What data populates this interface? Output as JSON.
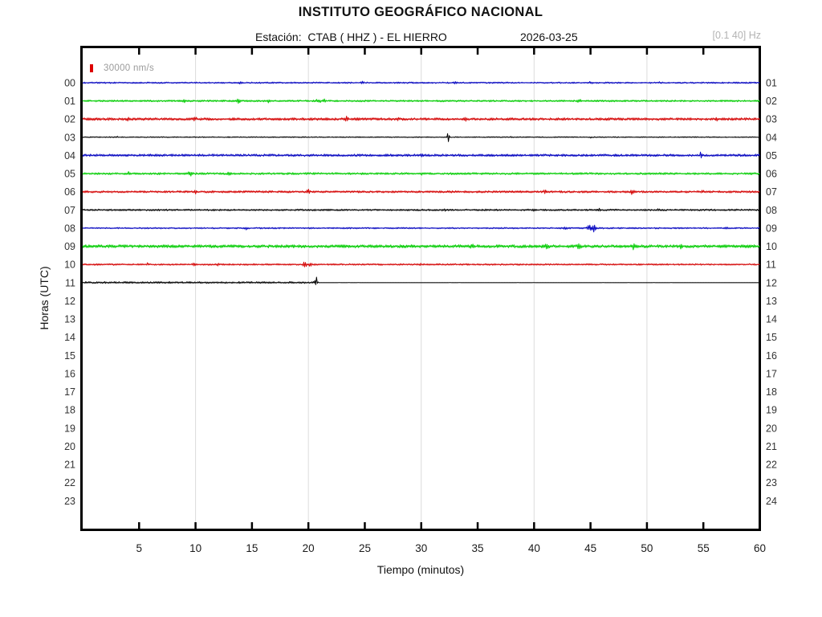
{
  "header": {
    "title": "INSTITUTO GEOGRÁFICO NACIONAL",
    "station_label": "Estación:",
    "station": "CTAB ( HHZ ) - EL HIERRO",
    "date": "2026-03-25",
    "filter_band": "[0.1 40] Hz"
  },
  "legend": {
    "scale_label": "30000 nm/s",
    "marker_color": "#dd0000"
  },
  "chart_data": {
    "type": "line",
    "subtype": "helicorder-seismogram",
    "title": "INSTITUTO GEOGRÁFICO NACIONAL",
    "subtitle": "Estación: CTAB ( HHZ ) - EL HIERRO 2026-03-25",
    "xlabel": "Tiempo (minutos)",
    "ylabel": "Horas (UTC)",
    "x_axis": {
      "range": [
        0,
        60
      ],
      "tick_interval": 5,
      "tick_labels": [
        5,
        10,
        15,
        20,
        25,
        30,
        35,
        40,
        45,
        50,
        55,
        60
      ],
      "gridlines": [
        10,
        20,
        30,
        40,
        50
      ],
      "grid_color": "#dcdcdc"
    },
    "y_axis_left": {
      "label": "Horas (UTC)",
      "tick_labels": [
        "00",
        "01",
        "02",
        "03",
        "04",
        "05",
        "06",
        "07",
        "08",
        "09",
        "10",
        "11",
        "12",
        "13",
        "14",
        "15",
        "16",
        "17",
        "18",
        "19",
        "20",
        "21",
        "22",
        "23"
      ]
    },
    "y_axis_right": {
      "tick_labels": [
        "01",
        "02",
        "03",
        "04",
        "05",
        "06",
        "07",
        "08",
        "09",
        "10",
        "11",
        "12",
        "13",
        "14",
        "15",
        "16",
        "17",
        "18",
        "19",
        "20",
        "21",
        "22",
        "23",
        "24"
      ]
    },
    "frame_color": "#000000",
    "rows": [
      {
        "hour": "00",
        "color": "#0000bf",
        "amp": 0.9,
        "end": 60,
        "events": [
          {
            "m": 13.9,
            "a": 1.5,
            "w": 0.2
          },
          {
            "m": 24.8,
            "a": 1.2,
            "w": 0.2
          },
          {
            "m": 33,
            "a": 1.2,
            "w": 0.2
          },
          {
            "m": 45,
            "a": 1.5,
            "w": 0.25
          },
          {
            "m": 51,
            "a": 1.0,
            "w": 0.2
          }
        ]
      },
      {
        "hour": "01",
        "color": "#00cc00",
        "amp": 1.1,
        "end": 60,
        "events": [
          {
            "m": 9,
            "a": 1.5,
            "w": 0.25
          },
          {
            "m": 13.8,
            "a": 2.8,
            "w": 0.2
          },
          {
            "m": 16.5,
            "a": 1.8,
            "w": 0.2
          },
          {
            "m": 20.9,
            "a": 2.8,
            "w": 0.25
          },
          {
            "m": 21.4,
            "a": 2.2,
            "w": 0.2
          },
          {
            "m": 44,
            "a": 1.5,
            "w": 0.3
          }
        ]
      },
      {
        "hour": "02",
        "color": "#d40000",
        "amp": 1.6,
        "end": 60,
        "events": [
          {
            "m": 4,
            "a": 1.5,
            "w": 0.2
          },
          {
            "m": 10,
            "a": 1.5,
            "w": 0.25
          },
          {
            "m": 23.4,
            "a": 2.8,
            "w": 0.18
          },
          {
            "m": 27.9,
            "a": 1.8,
            "w": 0.2
          },
          {
            "m": 34,
            "a": 1.5,
            "w": 0.2
          },
          {
            "m": 56.2,
            "a": 1.6,
            "w": 0.18
          }
        ]
      },
      {
        "hour": "03",
        "color": "#000000",
        "amp": 0.8,
        "end": 60,
        "asym": 0.45,
        "events": [
          {
            "m": 3,
            "a": 1.0,
            "w": 0.15
          },
          {
            "m": 13,
            "a": 1.2,
            "w": 0.15
          },
          {
            "m": 24.6,
            "a": 1.0,
            "w": 0.15
          },
          {
            "m": 32.4,
            "a": 11,
            "w": 0.12
          },
          {
            "m": 38,
            "a": 1.0,
            "w": 0.15
          },
          {
            "m": 45,
            "a": 1.2,
            "w": 0.2
          }
        ]
      },
      {
        "hour": "04",
        "color": "#0000bf",
        "amp": 1.7,
        "end": 60,
        "asym": 0.25,
        "events": [
          {
            "m": 20,
            "a": 1.3,
            "w": 0.2
          },
          {
            "m": 30,
            "a": 1.5,
            "w": 0.2
          },
          {
            "m": 54.8,
            "a": 5,
            "w": 0.15
          }
        ]
      },
      {
        "hour": "05",
        "color": "#00cc00",
        "amp": 1.3,
        "end": 60,
        "events": [
          {
            "m": 4,
            "a": 2.0,
            "w": 0.25
          },
          {
            "m": 9.5,
            "a": 3.5,
            "w": 0.18
          },
          {
            "m": 13,
            "a": 1.8,
            "w": 0.2
          },
          {
            "m": 30,
            "a": 1.3,
            "w": 0.2
          }
        ]
      },
      {
        "hour": "06",
        "color": "#d40000",
        "amp": 1.3,
        "end": 60,
        "events": [
          {
            "m": 10,
            "a": 1.5,
            "w": 0.2
          },
          {
            "m": 20,
            "a": 2.8,
            "w": 0.18
          },
          {
            "m": 41,
            "a": 2.2,
            "w": 0.2
          },
          {
            "m": 48.7,
            "a": 2.8,
            "w": 0.2
          },
          {
            "m": 55,
            "a": 1.5,
            "w": 0.2
          }
        ]
      },
      {
        "hour": "07",
        "color": "#000000",
        "amp": 1.1,
        "end": 60,
        "events": [
          {
            "m": 5,
            "a": 1.5,
            "w": 0.2
          },
          {
            "m": 32,
            "a": 1.5,
            "w": 0.2
          },
          {
            "m": 40,
            "a": 1.3,
            "w": 0.2
          },
          {
            "m": 45.7,
            "a": 1.6,
            "w": 0.25
          },
          {
            "m": 51,
            "a": 1.6,
            "w": 0.15
          }
        ]
      },
      {
        "hour": "08",
        "color": "#0000bf",
        "amp": 0.9,
        "end": 60,
        "events": [
          {
            "m": 14.5,
            "a": 1.5,
            "w": 0.2
          },
          {
            "m": 42.8,
            "a": 2.2,
            "w": 0.25
          },
          {
            "m": 44.9,
            "a": 3.5,
            "w": 0.3
          },
          {
            "m": 45.3,
            "a": 4.5,
            "w": 0.3
          },
          {
            "m": 57,
            "a": 1.3,
            "w": 0.2
          }
        ]
      },
      {
        "hour": "09",
        "color": "#00cc00",
        "amp": 1.9,
        "end": 60,
        "events": [
          {
            "m": 34.5,
            "a": 2.8,
            "w": 0.2
          },
          {
            "m": 41.2,
            "a": 3.2,
            "w": 0.3
          },
          {
            "m": 44,
            "a": 2.2,
            "w": 0.25
          },
          {
            "m": 48.8,
            "a": 3.2,
            "w": 0.3
          },
          {
            "m": 53,
            "a": 2.2,
            "w": 0.25
          },
          {
            "m": 58,
            "a": 2.0,
            "w": 0.2
          }
        ]
      },
      {
        "hour": "10",
        "color": "#d40000",
        "amp": 1.0,
        "end": 60,
        "events": [
          {
            "m": 5.7,
            "a": 2.2,
            "w": 0.15
          },
          {
            "m": 9.9,
            "a": 2.8,
            "w": 0.15
          },
          {
            "m": 12,
            "a": 2.2,
            "w": 0.15
          },
          {
            "m": 19.7,
            "a": 3.5,
            "w": 0.25
          },
          {
            "m": 20.2,
            "a": 3.5,
            "w": 0.25
          },
          {
            "m": 30,
            "a": 1.3,
            "w": 0.15
          }
        ]
      },
      {
        "hour": "11",
        "color": "#000000",
        "amp": 1.4,
        "end": 60,
        "asym": 0.3,
        "flat_from": 20.9,
        "flat_amp": 0.15,
        "events": [
          {
            "m": 20.7,
            "a": 7,
            "w": 0.15
          }
        ]
      }
    ]
  }
}
